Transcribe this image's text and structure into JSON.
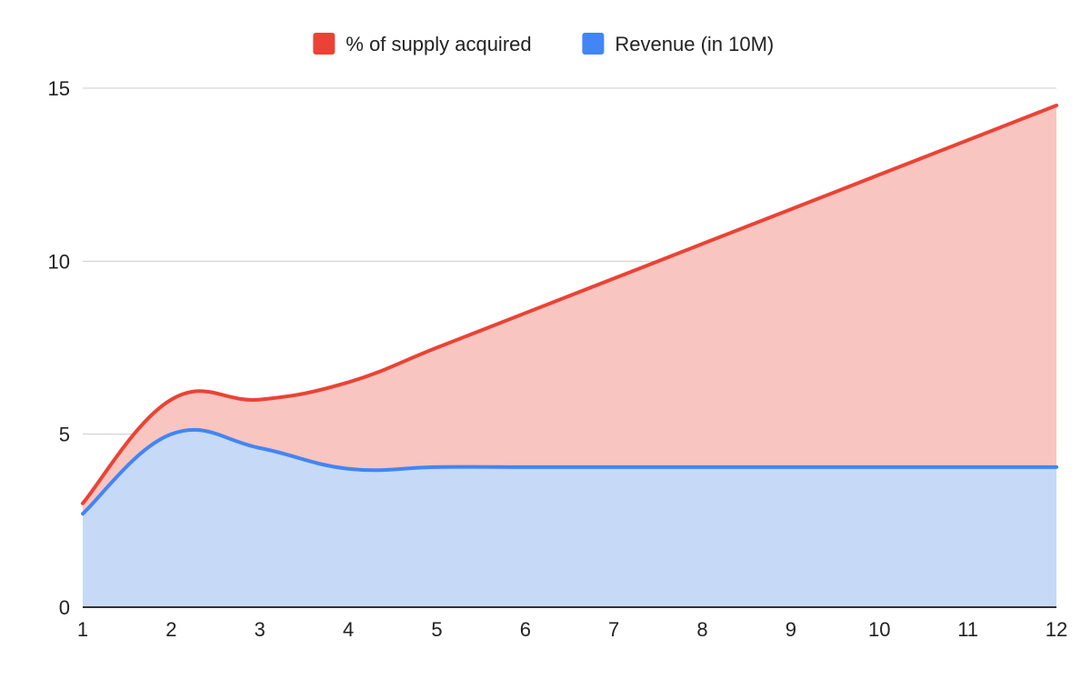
{
  "chart_data": {
    "type": "area",
    "title": "",
    "xlabel": "",
    "ylabel": "",
    "x": [
      1,
      2,
      3,
      4,
      5,
      6,
      7,
      8,
      9,
      10,
      11,
      12
    ],
    "ylim": [
      0,
      15
    ],
    "y_ticks": [
      0,
      5,
      10,
      15
    ],
    "grid": true,
    "legend_position": "top",
    "series": [
      {
        "name": "% of supply acquired",
        "values": [
          3.0,
          6.0,
          6.0,
          6.5,
          7.5,
          8.5,
          9.5,
          10.5,
          11.5,
          12.5,
          13.5,
          14.5
        ],
        "line_color": "#ea4335",
        "fill_color": "#f8c5c1"
      },
      {
        "name": "Revenue (in 10M)",
        "values": [
          2.7,
          5.0,
          4.6,
          4.0,
          4.05,
          4.05,
          4.05,
          4.05,
          4.05,
          4.05,
          4.05,
          4.05
        ],
        "line_color": "#4285f4",
        "fill_color": "#c6d9f7"
      }
    ]
  }
}
